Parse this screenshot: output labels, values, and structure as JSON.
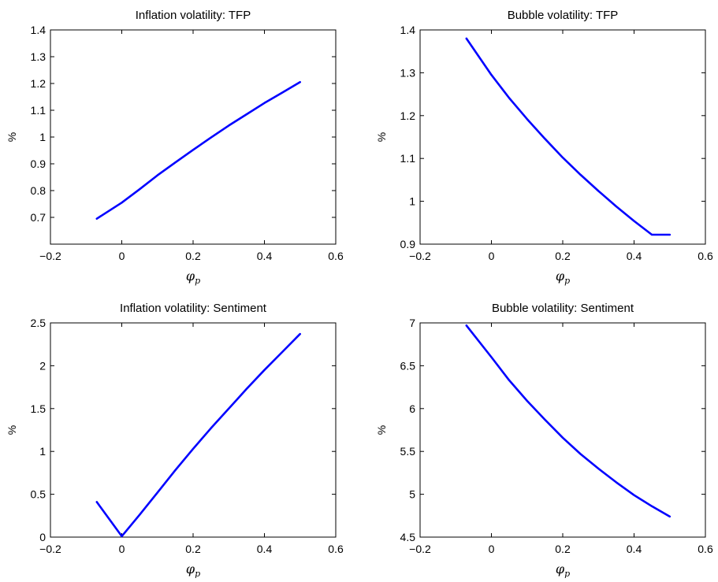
{
  "chart_data": [
    {
      "type": "line",
      "title": "Inflation volatility: TFP",
      "xlabel": "φ",
      "xlabel_sub": "p",
      "ylabel": "%",
      "xlim": [
        -0.2,
        0.6
      ],
      "ylim": [
        0.6,
        1.4
      ],
      "xticks": [
        -0.2,
        0,
        0.2,
        0.4,
        0.6
      ],
      "xtick_labels": [
        "−0.2",
        "0",
        "0.2",
        "0.4",
        "0.6"
      ],
      "yticks": [
        0.7,
        0.8,
        0.9,
        1.0,
        1.1,
        1.2,
        1.3,
        1.4
      ],
      "ytick_labels": [
        "0.7",
        "0.8",
        "0.9",
        "1",
        "1.1",
        "1.2",
        "1.3",
        "1.4"
      ],
      "color": "#0000ff",
      "series": [
        {
          "x": [
            -0.07,
            0,
            0.05,
            0.1,
            0.15,
            0.2,
            0.25,
            0.3,
            0.35,
            0.4,
            0.45,
            0.5
          ],
          "y": [
            0.695,
            0.755,
            0.805,
            0.857,
            0.905,
            0.952,
            0.998,
            1.043,
            1.085,
            1.127,
            1.166,
            1.205
          ]
        }
      ]
    },
    {
      "type": "line",
      "title": "Bubble volatility: TFP",
      "xlabel": "φ",
      "xlabel_sub": "p",
      "ylabel": "%",
      "xlim": [
        -0.2,
        0.6
      ],
      "ylim": [
        0.9,
        1.4
      ],
      "xticks": [
        -0.2,
        0,
        0.2,
        0.4,
        0.6
      ],
      "xtick_labels": [
        "−0.2",
        "0",
        "0.2",
        "0.4",
        "0.6"
      ],
      "yticks": [
        0.9,
        1.0,
        1.1,
        1.2,
        1.3,
        1.4
      ],
      "ytick_labels": [
        "0.9",
        "1",
        "1.1",
        "1.2",
        "1.3",
        "1.4"
      ],
      "color": "#0000ff",
      "series": [
        {
          "x": [
            -0.07,
            0,
            0.05,
            0.1,
            0.15,
            0.2,
            0.25,
            0.3,
            0.35,
            0.4,
            0.45,
            0.5
          ],
          "y": [
            1.38,
            1.295,
            1.241,
            1.192,
            1.146,
            1.102,
            1.062,
            1.024,
            0.988,
            0.954,
            0.922,
            0.922
          ]
        }
      ]
    },
    {
      "type": "line",
      "title": "Inflation volatility: Sentiment",
      "xlabel": "φ",
      "xlabel_sub": "p",
      "ylabel": "%",
      "xlim": [
        -0.2,
        0.6
      ],
      "ylim": [
        0,
        2.5
      ],
      "xticks": [
        -0.2,
        0,
        0.2,
        0.4,
        0.6
      ],
      "xtick_labels": [
        "−0.2",
        "0",
        "0.2",
        "0.4",
        "0.6"
      ],
      "yticks": [
        0,
        0.5,
        1,
        1.5,
        2,
        2.5
      ],
      "ytick_labels": [
        "0",
        "0.5",
        "1",
        "1.5",
        "2",
        "2.5"
      ],
      "color": "#0000ff",
      "series": [
        {
          "x": [
            -0.07,
            0,
            0.05,
            0.1,
            0.15,
            0.2,
            0.25,
            0.3,
            0.35,
            0.4,
            0.45,
            0.5
          ],
          "y": [
            0.41,
            0.01,
            0.26,
            0.52,
            0.78,
            1.03,
            1.27,
            1.5,
            1.73,
            1.95,
            2.16,
            2.37
          ]
        }
      ]
    },
    {
      "type": "line",
      "title": "Bubble volatility: Sentiment",
      "xlabel": "φ",
      "xlabel_sub": "p",
      "ylabel": "%",
      "xlim": [
        -0.2,
        0.6
      ],
      "ylim": [
        4.5,
        7
      ],
      "xticks": [
        -0.2,
        0,
        0.2,
        0.4,
        0.6
      ],
      "xtick_labels": [
        "−0.2",
        "0",
        "0.2",
        "0.4",
        "0.6"
      ],
      "yticks": [
        4.5,
        5,
        5.5,
        6,
        6.5,
        7
      ],
      "ytick_labels": [
        "4.5",
        "5",
        "5.5",
        "6",
        "6.5",
        "7"
      ],
      "color": "#0000ff",
      "series": [
        {
          "x": [
            -0.07,
            0,
            0.05,
            0.1,
            0.15,
            0.2,
            0.25,
            0.3,
            0.35,
            0.4,
            0.45,
            0.5
          ],
          "y": [
            6.97,
            6.6,
            6.33,
            6.09,
            5.87,
            5.66,
            5.47,
            5.3,
            5.14,
            4.99,
            4.86,
            4.74
          ]
        }
      ]
    }
  ]
}
